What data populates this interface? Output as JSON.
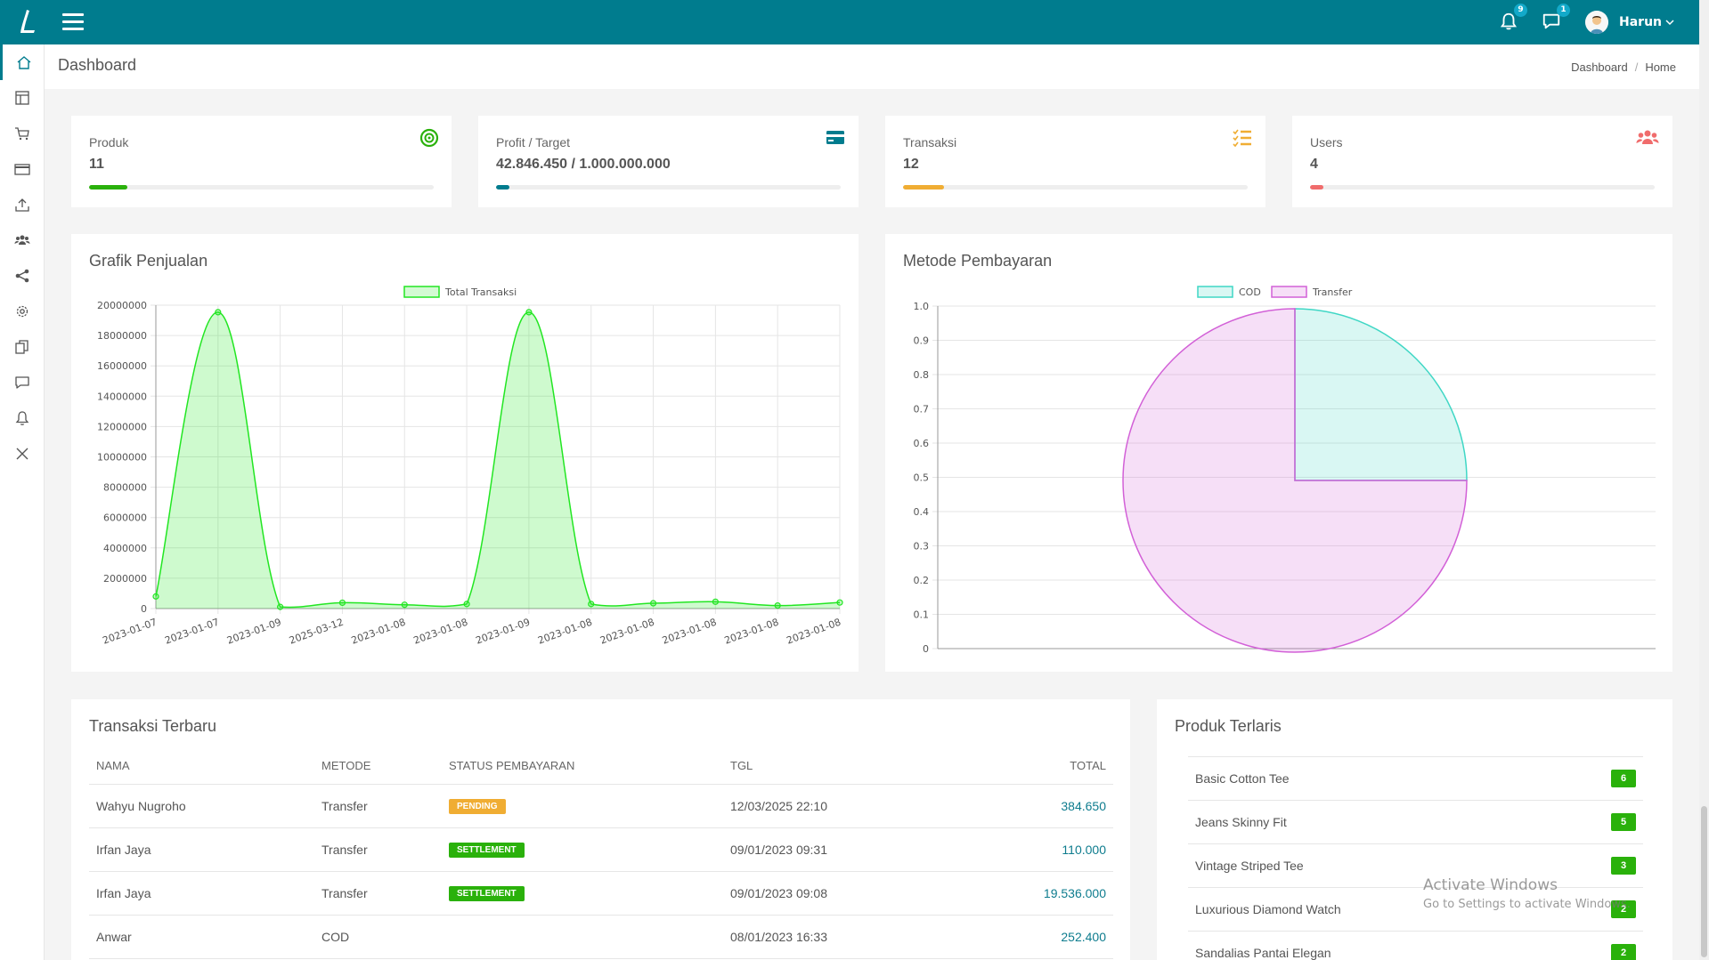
{
  "topbar": {
    "user_name": "Harun",
    "notification_count": "9",
    "message_count": "1"
  },
  "header": {
    "title": "Dashboard",
    "breadcrumb": [
      "Dashboard",
      "Home"
    ]
  },
  "stats": [
    {
      "label": "Produk",
      "value": "11",
      "progress": 0.11,
      "color": "#2ab10b",
      "icon": "target-icon"
    },
    {
      "label": "Profit / Target",
      "value": "42.846.450 / 1.000.000.000",
      "progress": 0.04,
      "color": "#007c8e",
      "icon": "credit-card-icon"
    },
    {
      "label": "Transaksi",
      "value": "12",
      "progress": 0.12,
      "color": "#f0ad33",
      "icon": "checklist-icon"
    },
    {
      "label": "Users",
      "value": "4",
      "progress": 0.04,
      "color": "#f06c6c",
      "icon": "users-icon"
    }
  ],
  "sales_chart": {
    "title": "Grafik Penjualan"
  },
  "payment_chart": {
    "title": "Metode Pembayaran"
  },
  "chart_data": [
    {
      "type": "area",
      "legend": [
        "Total Transaksi"
      ],
      "categories": [
        "2023-01-07",
        "2023-01-07",
        "2023-01-09",
        "2025-03-12",
        "2023-01-08",
        "2023-01-08",
        "2023-01-09",
        "2023-01-08",
        "2023-01-08",
        "2023-01-08",
        "2023-01-08",
        "2023-01-08"
      ],
      "series": [
        {
          "name": "Total Transaksi",
          "values": [
            800000,
            19536000,
            110000,
            384650,
            252400,
            300000,
            19536000,
            300000,
            350000,
            450000,
            200000,
            400000
          ]
        }
      ],
      "ylim": [
        0,
        20000000
      ],
      "yticks": [
        "0",
        "2000000",
        "4000000",
        "6000000",
        "8000000",
        "10000000",
        "12000000",
        "14000000",
        "16000000",
        "18000000",
        "20000000"
      ],
      "legend_position": "top",
      "grid": true,
      "color": "#22e622"
    },
    {
      "type": "pie",
      "legend": [
        "COD",
        "Transfer"
      ],
      "labels": [
        "COD",
        "Transfer"
      ],
      "values": [
        0.25,
        0.75
      ],
      "colors": [
        "#3fd7c5",
        "#d260d7"
      ],
      "yticks": [
        "0",
        "0.1",
        "0.2",
        "0.3",
        "0.4",
        "0.5",
        "0.6",
        "0.7",
        "0.8",
        "0.9",
        "1.0"
      ],
      "legend_position": "top"
    }
  ],
  "recent_transactions": {
    "title": "Transaksi Terbaru",
    "columns": [
      "NAMA",
      "METODE",
      "STATUS PEMBAYARAN",
      "TGL",
      "TOTAL"
    ],
    "rows": [
      {
        "nama": "Wahyu Nugroho",
        "metode": "Transfer",
        "status": "PENDING",
        "status_color": "#f0ad33",
        "tgl": "12/03/2025 22:10",
        "total": "384.650"
      },
      {
        "nama": "Irfan Jaya",
        "metode": "Transfer",
        "status": "SETTLEMENT",
        "status_color": "#2ab10b",
        "tgl": "09/01/2023 09:31",
        "total": "110.000"
      },
      {
        "nama": "Irfan Jaya",
        "metode": "Transfer",
        "status": "SETTLEMENT",
        "status_color": "#2ab10b",
        "tgl": "09/01/2023 09:08",
        "total": "19.536.000"
      },
      {
        "nama": "Anwar",
        "metode": "COD",
        "status": "",
        "status_color": "",
        "tgl": "08/01/2023 16:33",
        "total": "252.400"
      }
    ]
  },
  "best_sellers": {
    "title": "Produk Terlaris",
    "items": [
      {
        "name": "Basic Cotton Tee",
        "count": "6"
      },
      {
        "name": "Jeans Skinny Fit",
        "count": "5"
      },
      {
        "name": "Vintage Striped Tee",
        "count": "3"
      },
      {
        "name": "Luxurious Diamond Watch",
        "count": "2"
      },
      {
        "name": "Sandalias Pantai Elegan",
        "count": "2"
      }
    ]
  },
  "watermark": {
    "line1": "Activate Windows",
    "line2": "Go to Settings to activate Windows."
  }
}
